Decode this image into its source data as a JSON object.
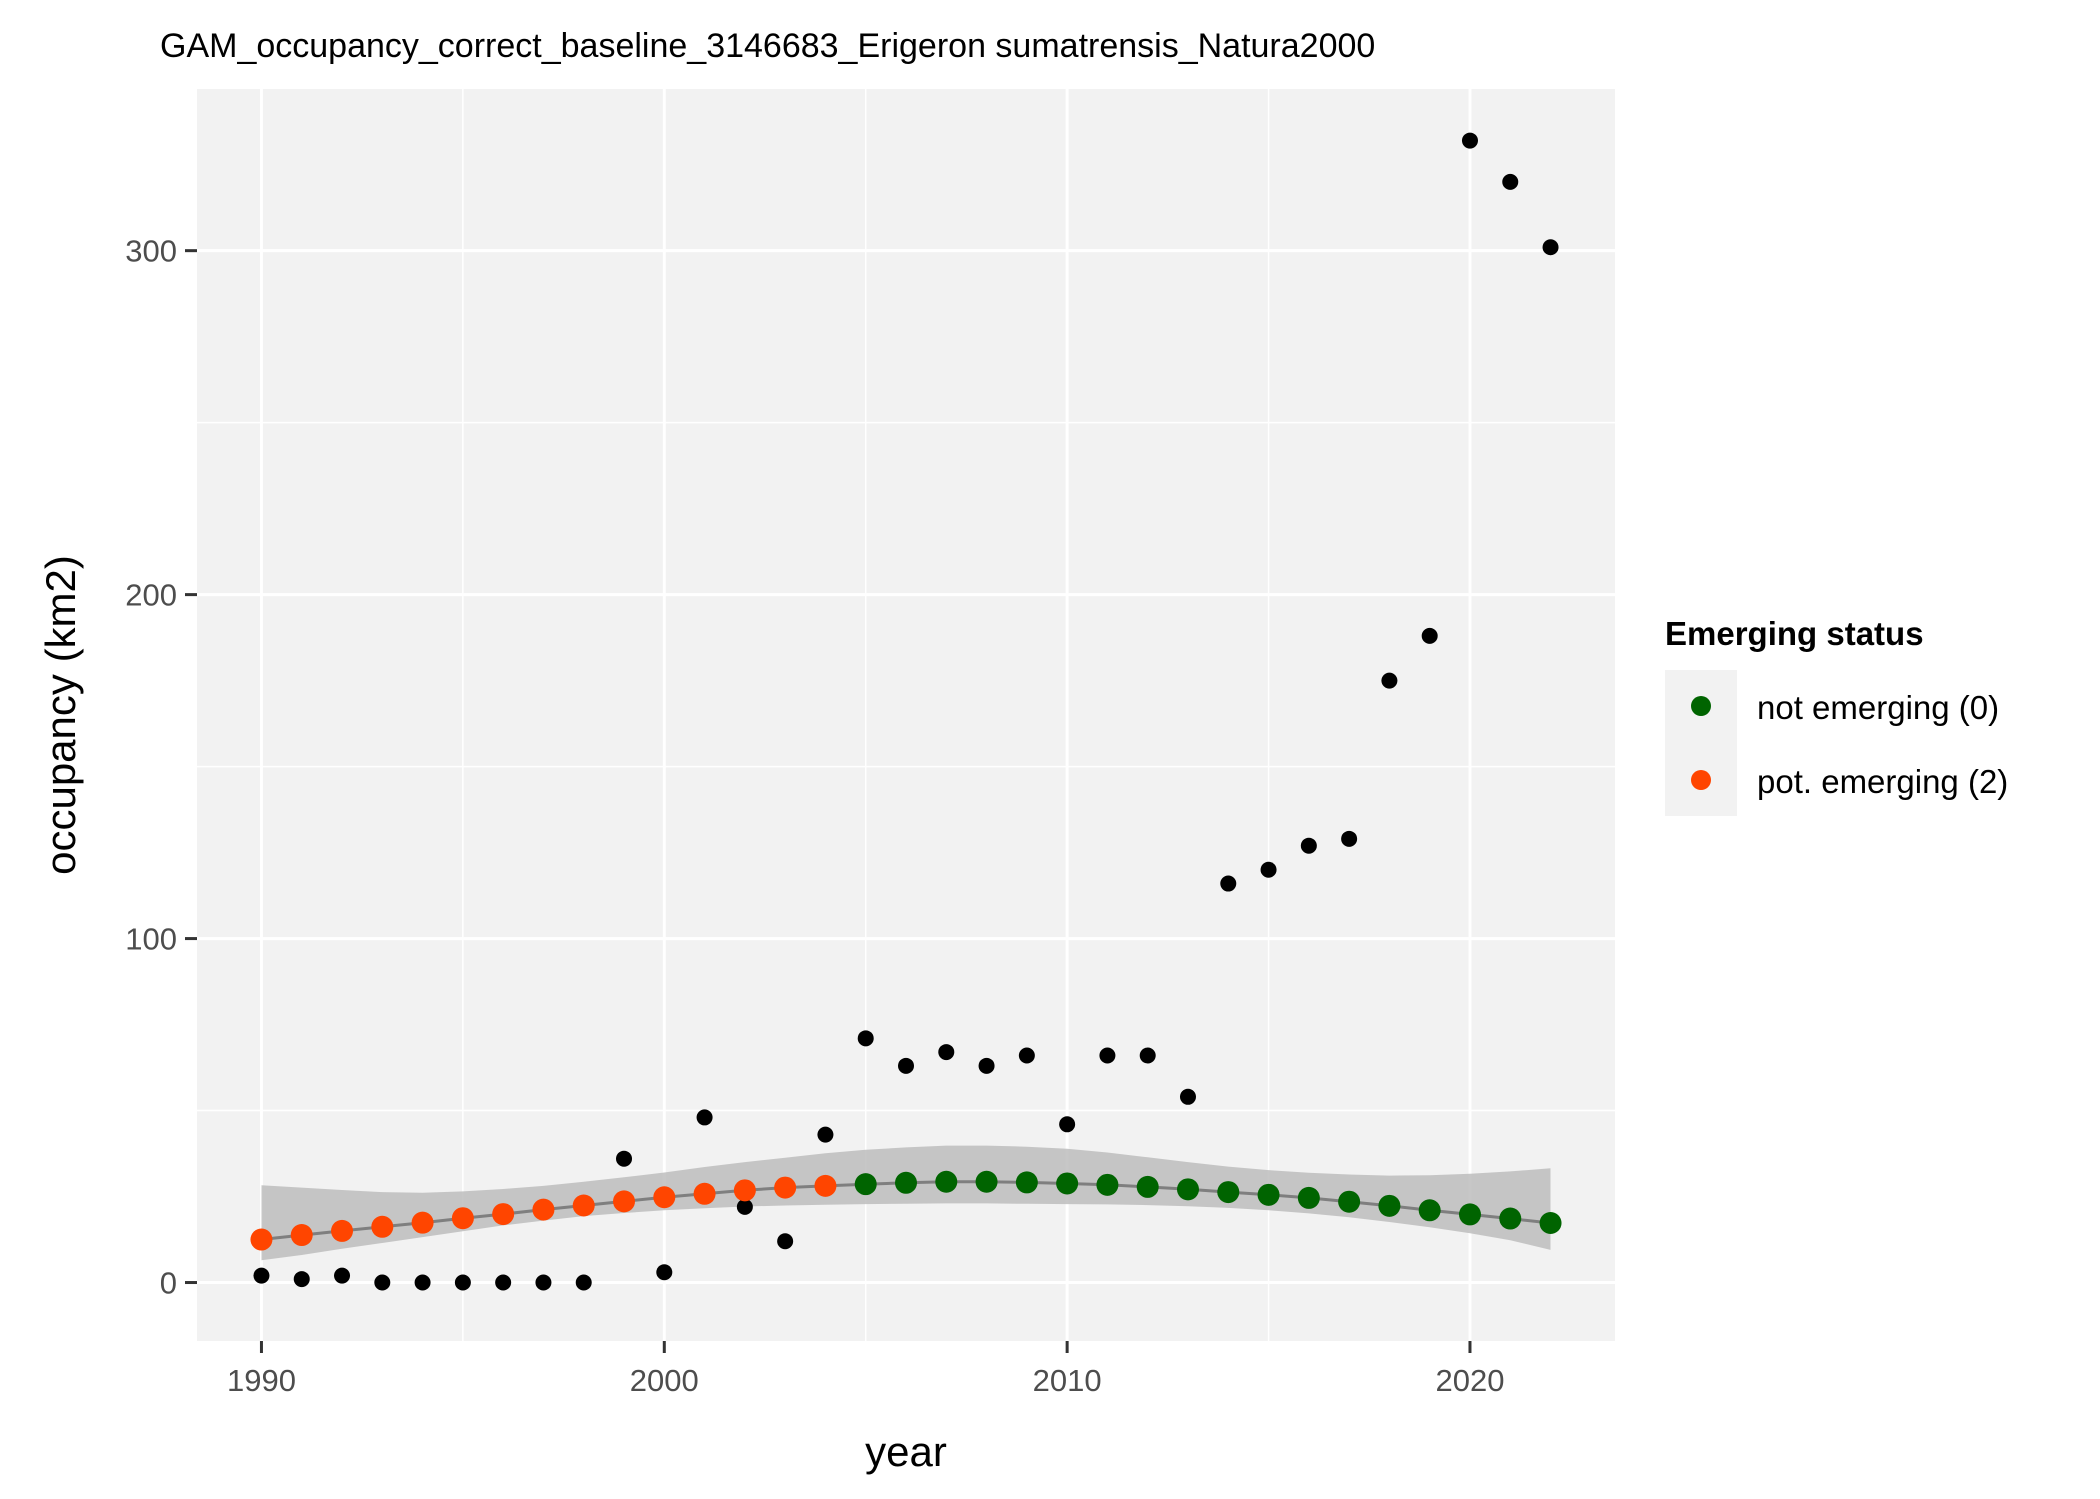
{
  "chart_data": {
    "type": "scatter",
    "title": "GAM_occupancy_correct_baseline_3146683_Erigeron sumatrensis_Natura2000",
    "xlabel": "year",
    "ylabel": "occupancy (km2)",
    "xlim": [
      1988.4,
      2023.6
    ],
    "ylim": [
      -17,
      347
    ],
    "x_ticks": [
      1990,
      2000,
      2010,
      2020
    ],
    "y_ticks": [
      0,
      100,
      200,
      300
    ],
    "grid": true,
    "legend": {
      "title": "Emerging status",
      "placement": "right",
      "entries": [
        {
          "label": "not emerging (0)",
          "color": "#006400"
        },
        {
          "label": "pot. emerging (2)",
          "color": "#ff4500"
        }
      ]
    },
    "observed": {
      "color": "#000000",
      "x": [
        1990,
        1991,
        1992,
        1993,
        1994,
        1995,
        1996,
        1997,
        1998,
        1999,
        2000,
        2001,
        2002,
        2003,
        2004,
        2005,
        2006,
        2007,
        2008,
        2009,
        2010,
        2011,
        2012,
        2013,
        2014,
        2015,
        2016,
        2017,
        2018,
        2019,
        2020,
        2021,
        2022
      ],
      "y": [
        2,
        1,
        2,
        0,
        0,
        0,
        0,
        0,
        0,
        36,
        3,
        48,
        22,
        12,
        43,
        71,
        63,
        67,
        63,
        66,
        46,
        66,
        66,
        54,
        116,
        120,
        127,
        129,
        175,
        188,
        332,
        320,
        301
      ]
    },
    "fitted": {
      "line_color": "#7f7f7f",
      "band_color": "#bdbdbd",
      "x": [
        1990,
        1991,
        1992,
        1993,
        1994,
        1995,
        1996,
        1997,
        1998,
        1999,
        2000,
        2001,
        2002,
        2003,
        2004,
        2005,
        2006,
        2007,
        2008,
        2009,
        2010,
        2011,
        2012,
        2013,
        2014,
        2015,
        2016,
        2017,
        2018,
        2019,
        2020,
        2021,
        2022
      ],
      "y": [
        12.5,
        13.8,
        15.0,
        16.2,
        17.4,
        18.7,
        19.9,
        21.2,
        22.4,
        23.6,
        24.8,
        25.8,
        26.8,
        27.6,
        28.1,
        28.6,
        29.0,
        29.3,
        29.3,
        29.1,
        28.8,
        28.4,
        27.8,
        27.1,
        26.3,
        25.5,
        24.6,
        23.5,
        22.3,
        21.0,
        19.8,
        18.6,
        17.3
      ],
      "lower": [
        6.5,
        8.0,
        9.8,
        11.5,
        13.2,
        14.9,
        16.6,
        18.0,
        19.3,
        20.2,
        21.0,
        21.6,
        22.1,
        22.4,
        22.6,
        22.8,
        22.9,
        23.0,
        23.0,
        22.9,
        22.8,
        22.7,
        22.5,
        22.2,
        21.7,
        21.0,
        20.1,
        19.0,
        17.6,
        16.1,
        14.3,
        12.3,
        9.5
      ],
      "upper": [
        28.3,
        27.6,
        26.9,
        26.3,
        26.1,
        26.5,
        27.2,
        28.1,
        29.3,
        30.6,
        32.0,
        33.6,
        35.0,
        36.3,
        37.6,
        38.6,
        39.3,
        39.8,
        39.8,
        39.5,
        38.9,
        37.8,
        36.4,
        35.0,
        33.7,
        32.7,
        31.9,
        31.4,
        31.1,
        31.2,
        31.6,
        32.3,
        33.2
      ],
      "status": [
        2,
        2,
        2,
        2,
        2,
        2,
        2,
        2,
        2,
        2,
        2,
        2,
        2,
        2,
        2,
        0,
        0,
        0,
        0,
        0,
        0,
        0,
        0,
        0,
        0,
        0,
        0,
        0,
        0,
        0,
        0,
        0,
        0
      ]
    }
  }
}
